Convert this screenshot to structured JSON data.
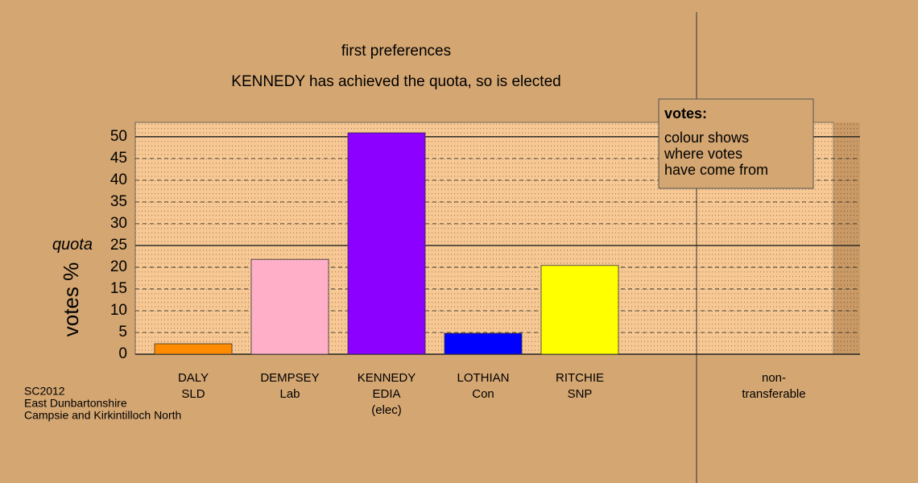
{
  "chart_data": {
    "type": "bar",
    "title": "first preferences",
    "subtitle": "KENNEDY has achieved the quota, so is elected",
    "ylabel": "votes %",
    "categories": [
      [
        "DALY",
        "SLD"
      ],
      [
        "DEMPSEY",
        "Lab"
      ],
      [
        "KENNEDY",
        "EDIA",
        "(elec)"
      ],
      [
        "LOTHIAN",
        "Con"
      ],
      [
        "RITCHIE",
        "SNP"
      ],
      [
        "non-",
        "transferable"
      ]
    ],
    "values": [
      2.4,
      21.8,
      50.9,
      4.8,
      20.4,
      0
    ],
    "colors": [
      "#ff8c00",
      "#ffb0c8",
      "#8b00ff",
      "#0000ff",
      "#ffff00",
      "#808080"
    ],
    "ylim": [
      0,
      53.3
    ],
    "yticks": [
      0,
      5,
      10,
      15,
      20,
      25,
      30,
      35,
      40,
      45,
      50
    ],
    "quota": 25,
    "quota_label": "quota",
    "grid": true,
    "legend": {
      "title": "votes:",
      "lines": [
        "colour shows",
        "where votes",
        "have come from"
      ]
    },
    "footnote": [
      "SC2012",
      "East Dunbartonshire",
      "Campsie and Kirkintilloch North"
    ]
  }
}
